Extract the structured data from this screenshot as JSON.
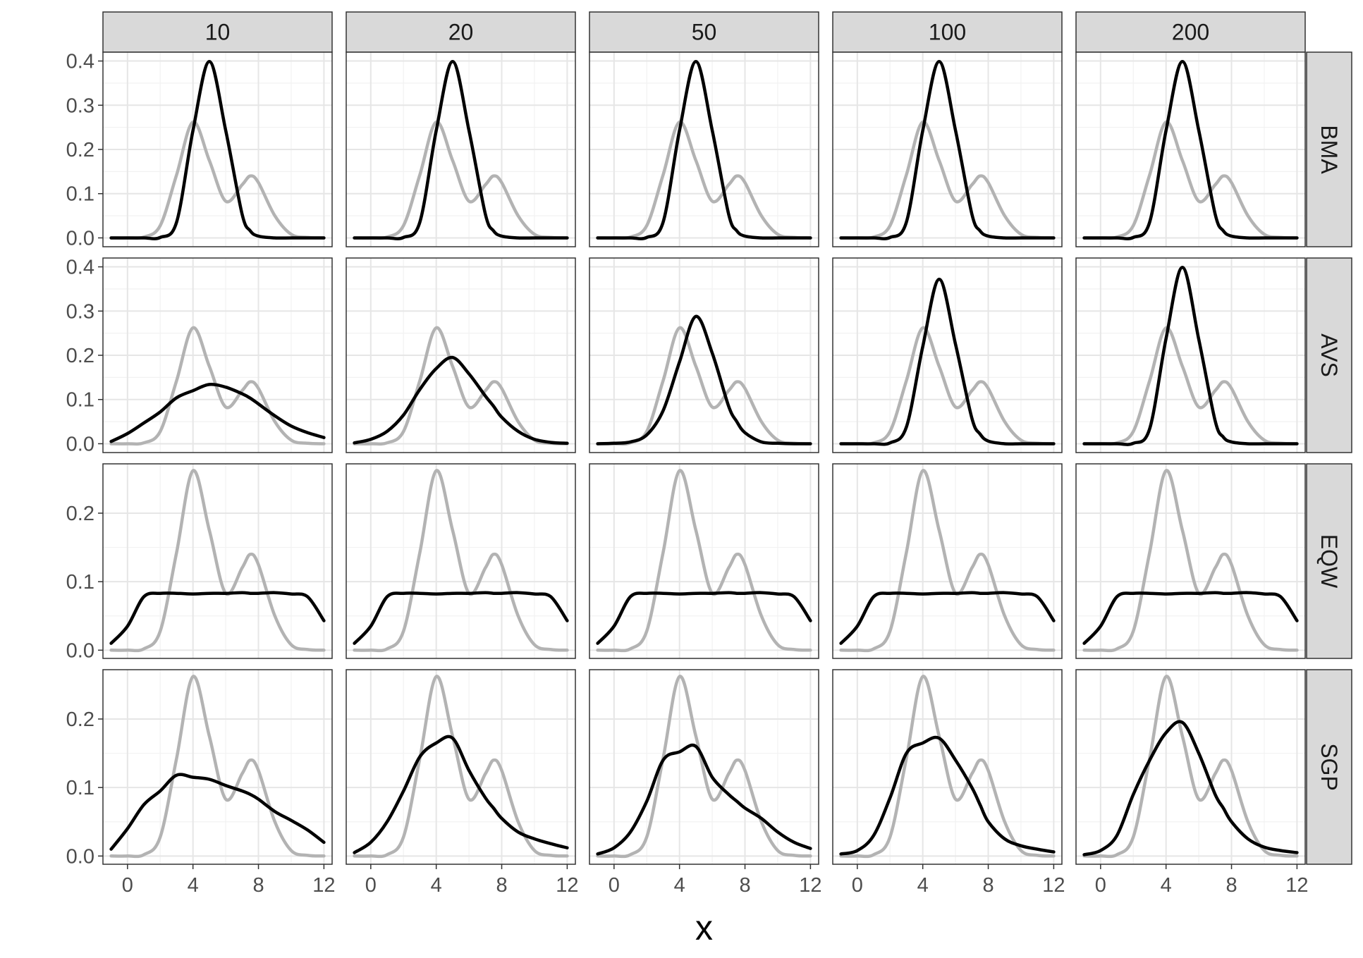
{
  "chart_data": {
    "type": "line",
    "facet_columns": [
      "10",
      "20",
      "50",
      "100",
      "200"
    ],
    "facet_rows": [
      "BMA",
      "AVS",
      "EQW",
      "SGP"
    ],
    "xlabel": "x",
    "ylabel": "",
    "xlim": [
      -1.5,
      12.5
    ],
    "x_ticks": [
      0,
      4,
      8,
      12
    ],
    "grid": true,
    "y_axes": [
      {
        "row": "BMA",
        "ylim": [
          -0.02,
          0.42
        ],
        "ticks": [
          0.0,
          0.1,
          0.2,
          0.3,
          0.4
        ],
        "tick_labels": [
          "0.0",
          "0.1",
          "0.2",
          "0.3",
          "0.4"
        ]
      },
      {
        "row": "AVS",
        "ylim": [
          -0.02,
          0.42
        ],
        "ticks": [
          0.0,
          0.1,
          0.2,
          0.3,
          0.4
        ],
        "tick_labels": [
          "0.0",
          "0.1",
          "0.2",
          "0.3",
          "0.4"
        ]
      },
      {
        "row": "EQW",
        "ylim": [
          -0.012,
          0.272
        ],
        "ticks": [
          0.0,
          0.1,
          0.2
        ],
        "tick_labels": [
          "0.0",
          "0.1",
          "0.2"
        ]
      },
      {
        "row": "SGP",
        "ylim": [
          -0.012,
          0.272
        ],
        "ticks": [
          0.0,
          0.1,
          0.2
        ],
        "tick_labels": [
          "0.0",
          "0.1",
          "0.2"
        ]
      }
    ],
    "x": [
      -1,
      0,
      1,
      2,
      3,
      4,
      5,
      6,
      7,
      7.5,
      8,
      9,
      10,
      11,
      12
    ],
    "reference_series": {
      "color": "#b3b3b3",
      "values": [
        0.0,
        0.0,
        0.002,
        0.028,
        0.143,
        0.262,
        0.175,
        0.083,
        0.12,
        0.14,
        0.125,
        0.05,
        0.008,
        0.001,
        0.0
      ]
    },
    "estimate_color": "#000000",
    "panels": [
      {
        "row": "BMA",
        "col": "10",
        "values": [
          0.0,
          0.0,
          0.0,
          0.001,
          0.036,
          0.243,
          0.399,
          0.243,
          0.054,
          0.016,
          0.004,
          0.0,
          0.0,
          0.0,
          0.0
        ]
      },
      {
        "row": "BMA",
        "col": "20",
        "values": [
          0.0,
          0.0,
          0.0,
          0.001,
          0.036,
          0.243,
          0.399,
          0.243,
          0.054,
          0.016,
          0.004,
          0.0,
          0.0,
          0.0,
          0.0
        ]
      },
      {
        "row": "BMA",
        "col": "50",
        "values": [
          0.0,
          0.0,
          0.0,
          0.001,
          0.036,
          0.243,
          0.399,
          0.243,
          0.054,
          0.016,
          0.004,
          0.0,
          0.0,
          0.0,
          0.0
        ]
      },
      {
        "row": "BMA",
        "col": "100",
        "values": [
          0.0,
          0.0,
          0.0,
          0.001,
          0.036,
          0.243,
          0.399,
          0.243,
          0.054,
          0.016,
          0.004,
          0.0,
          0.0,
          0.0,
          0.0
        ]
      },
      {
        "row": "BMA",
        "col": "200",
        "values": [
          0.0,
          0.0,
          0.0,
          0.001,
          0.036,
          0.243,
          0.399,
          0.243,
          0.054,
          0.016,
          0.004,
          0.0,
          0.0,
          0.0,
          0.0
        ]
      },
      {
        "row": "AVS",
        "col": "10",
        "values": [
          0.005,
          0.023,
          0.047,
          0.072,
          0.104,
          0.12,
          0.134,
          0.128,
          0.113,
          0.103,
          0.09,
          0.063,
          0.04,
          0.025,
          0.014
        ]
      },
      {
        "row": "AVS",
        "col": "20",
        "values": [
          0.002,
          0.01,
          0.028,
          0.065,
          0.123,
          0.17,
          0.195,
          0.158,
          0.108,
          0.085,
          0.06,
          0.028,
          0.01,
          0.003,
          0.001
        ]
      },
      {
        "row": "AVS",
        "col": "50",
        "values": [
          0.0,
          0.001,
          0.004,
          0.02,
          0.075,
          0.185,
          0.288,
          0.205,
          0.085,
          0.05,
          0.025,
          0.004,
          0.001,
          0.0,
          0.0
        ]
      },
      {
        "row": "AVS",
        "col": "100",
        "values": [
          0.0,
          0.0,
          0.0,
          0.002,
          0.038,
          0.22,
          0.372,
          0.225,
          0.058,
          0.022,
          0.006,
          0.0,
          0.0,
          0.0,
          0.0
        ]
      },
      {
        "row": "AVS",
        "col": "200",
        "values": [
          0.0,
          0.0,
          0.0,
          0.001,
          0.034,
          0.238,
          0.399,
          0.236,
          0.052,
          0.015,
          0.004,
          0.0,
          0.0,
          0.0,
          0.0
        ]
      },
      {
        "row": "EQW",
        "col": "10",
        "values": [
          0.01,
          0.035,
          0.078,
          0.083,
          0.083,
          0.082,
          0.083,
          0.083,
          0.084,
          0.083,
          0.083,
          0.084,
          0.082,
          0.078,
          0.043
        ]
      },
      {
        "row": "EQW",
        "col": "20",
        "values": [
          0.01,
          0.035,
          0.078,
          0.083,
          0.083,
          0.082,
          0.083,
          0.083,
          0.084,
          0.083,
          0.083,
          0.084,
          0.082,
          0.078,
          0.043
        ]
      },
      {
        "row": "EQW",
        "col": "50",
        "values": [
          0.01,
          0.035,
          0.078,
          0.083,
          0.083,
          0.082,
          0.083,
          0.083,
          0.084,
          0.083,
          0.083,
          0.084,
          0.082,
          0.078,
          0.043
        ]
      },
      {
        "row": "EQW",
        "col": "100",
        "values": [
          0.01,
          0.035,
          0.078,
          0.083,
          0.083,
          0.082,
          0.083,
          0.083,
          0.084,
          0.083,
          0.083,
          0.084,
          0.082,
          0.078,
          0.043
        ]
      },
      {
        "row": "EQW",
        "col": "200",
        "values": [
          0.01,
          0.035,
          0.078,
          0.083,
          0.083,
          0.082,
          0.083,
          0.083,
          0.084,
          0.083,
          0.083,
          0.084,
          0.082,
          0.078,
          0.043
        ]
      },
      {
        "row": "SGP",
        "col": "10",
        "values": [
          0.01,
          0.04,
          0.075,
          0.095,
          0.118,
          0.115,
          0.112,
          0.103,
          0.095,
          0.09,
          0.083,
          0.065,
          0.052,
          0.038,
          0.02
        ]
      },
      {
        "row": "SGP",
        "col": "20",
        "values": [
          0.005,
          0.02,
          0.05,
          0.095,
          0.145,
          0.165,
          0.172,
          0.125,
          0.085,
          0.07,
          0.055,
          0.035,
          0.025,
          0.018,
          0.012
        ]
      },
      {
        "row": "SGP",
        "col": "50",
        "values": [
          0.003,
          0.012,
          0.035,
          0.08,
          0.14,
          0.152,
          0.16,
          0.115,
          0.09,
          0.08,
          0.07,
          0.055,
          0.035,
          0.02,
          0.011
        ]
      },
      {
        "row": "SGP",
        "col": "100",
        "values": [
          0.003,
          0.008,
          0.03,
          0.085,
          0.15,
          0.165,
          0.172,
          0.14,
          0.1,
          0.075,
          0.05,
          0.025,
          0.015,
          0.01,
          0.006
        ]
      },
      {
        "row": "SGP",
        "col": "200",
        "values": [
          0.002,
          0.008,
          0.03,
          0.09,
          0.14,
          0.18,
          0.195,
          0.15,
          0.09,
          0.07,
          0.05,
          0.025,
          0.013,
          0.008,
          0.005
        ]
      }
    ]
  }
}
